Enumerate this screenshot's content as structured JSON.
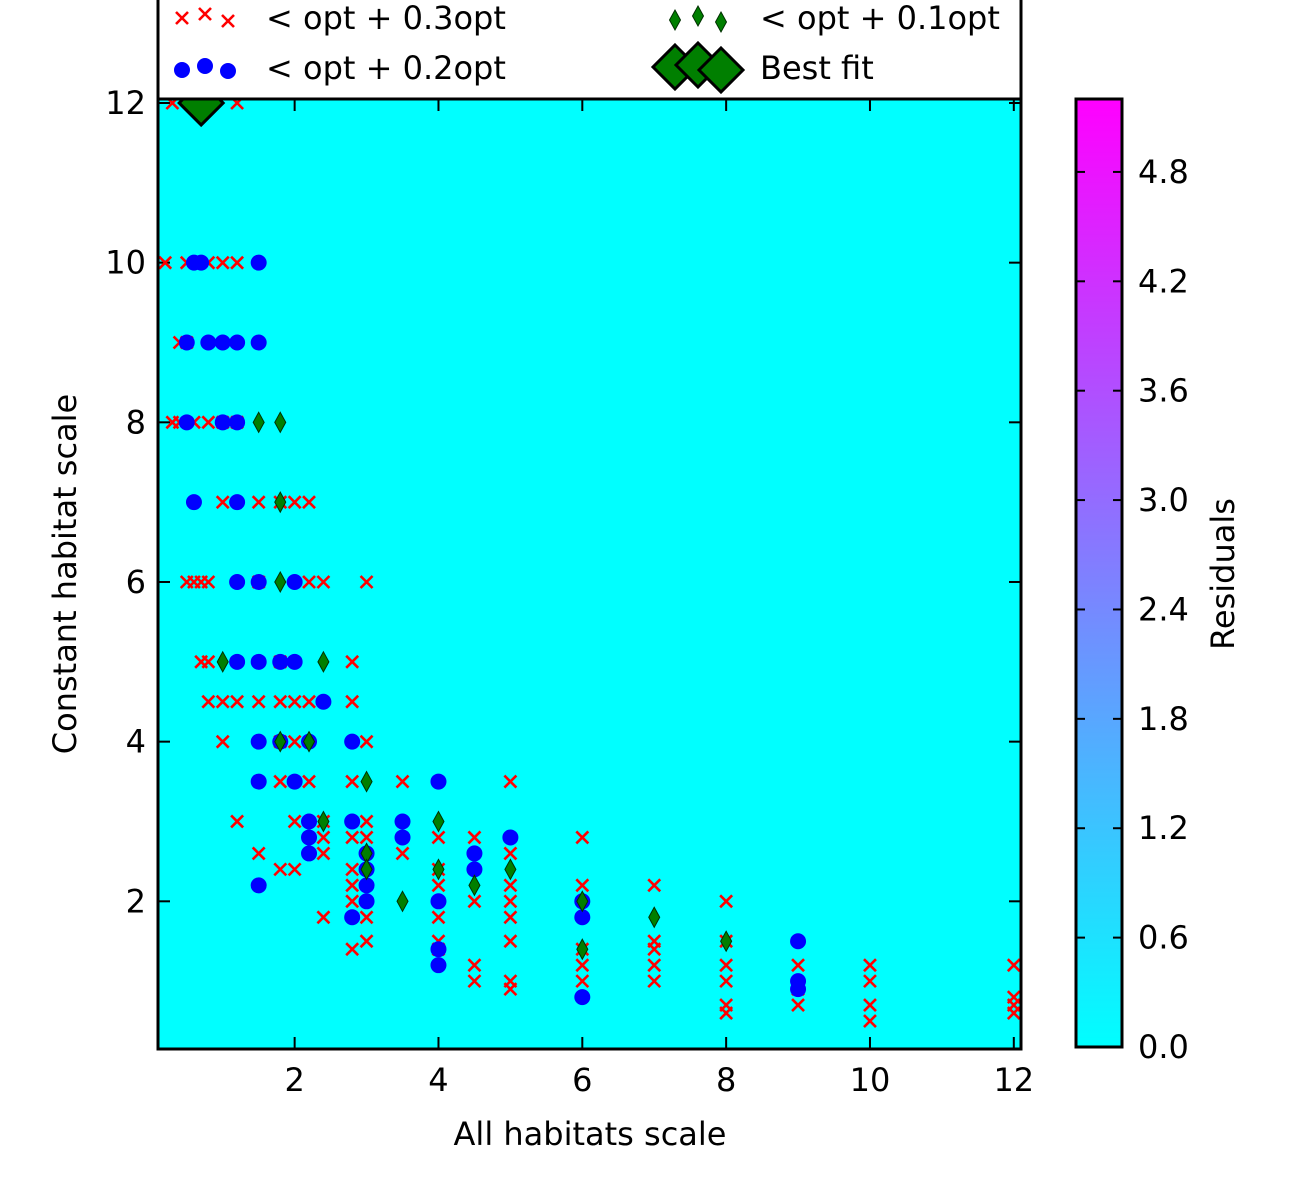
{
  "chart_data": {
    "type": "scatter",
    "xlabel": "All habitats scale",
    "ylabel": "Constant habitat scale",
    "xlim": [
      0.1,
      12.1
    ],
    "ylim": [
      0.15,
      12.05
    ],
    "xticks": [
      2,
      4,
      6,
      8,
      10,
      12
    ],
    "yticks": [
      2,
      4,
      6,
      8,
      10,
      12
    ],
    "background_color": "#00ffff",
    "grid": false,
    "colorbar": {
      "label": "Residuals",
      "min": 0.0,
      "max": 5.2,
      "ticks": [
        "0.0",
        "0.6",
        "1.2",
        "1.8",
        "2.4",
        "3.0",
        "3.6",
        "4.2",
        "4.8"
      ],
      "colormap": "cool"
    },
    "legend": {
      "placement": "top",
      "entries": [
        {
          "label": "< opt + 0.3opt",
          "marker": "x",
          "color": "#ff0000"
        },
        {
          "label": "< opt + 0.1opt",
          "marker": "thin-diamond",
          "color": "#007f00"
        },
        {
          "label": "< opt + 0.2opt",
          "marker": "circle",
          "color": "#0000ff"
        },
        {
          "label": "Best fit",
          "marker": "diamond",
          "color": "#007f00"
        }
      ]
    },
    "series": [
      {
        "name": "< opt + 0.3opt",
        "marker": "x",
        "color": "#ff0000",
        "points": [
          [
            0.3,
            12
          ],
          [
            0.7,
            12
          ],
          [
            1.2,
            12
          ],
          [
            0.2,
            10
          ],
          [
            0.5,
            10
          ],
          [
            0.8,
            10
          ],
          [
            1.0,
            10
          ],
          [
            1.2,
            10
          ],
          [
            0.4,
            9
          ],
          [
            0.5,
            9
          ],
          [
            0.3,
            8
          ],
          [
            0.4,
            8
          ],
          [
            0.6,
            8
          ],
          [
            0.8,
            8
          ],
          [
            1.0,
            8
          ],
          [
            1.2,
            8
          ],
          [
            1.0,
            7
          ],
          [
            1.5,
            7
          ],
          [
            1.8,
            7
          ],
          [
            2.0,
            7
          ],
          [
            2.2,
            7
          ],
          [
            0.5,
            6
          ],
          [
            0.6,
            6
          ],
          [
            0.7,
            6
          ],
          [
            0.8,
            6
          ],
          [
            1.5,
            6
          ],
          [
            2.2,
            6
          ],
          [
            2.4,
            6
          ],
          [
            3.0,
            6
          ],
          [
            0.7,
            5
          ],
          [
            0.8,
            5
          ],
          [
            1.8,
            5
          ],
          [
            2.8,
            5
          ],
          [
            0.8,
            4.5
          ],
          [
            1.0,
            4.5
          ],
          [
            1.2,
            4.5
          ],
          [
            1.5,
            4.5
          ],
          [
            1.8,
            4.5
          ],
          [
            2.0,
            4.5
          ],
          [
            2.2,
            4.5
          ],
          [
            2.8,
            4.5
          ],
          [
            1.0,
            4
          ],
          [
            1.8,
            4
          ],
          [
            2.0,
            4
          ],
          [
            3.0,
            4
          ],
          [
            1.8,
            3.5
          ],
          [
            2.2,
            3.5
          ],
          [
            2.8,
            3.5
          ],
          [
            3.5,
            3.5
          ],
          [
            5.0,
            3.5
          ],
          [
            1.2,
            3
          ],
          [
            2.0,
            3
          ],
          [
            2.4,
            3
          ],
          [
            3.0,
            3
          ],
          [
            2.4,
            2.8
          ],
          [
            2.8,
            2.8
          ],
          [
            3.0,
            2.8
          ],
          [
            4.0,
            2.8
          ],
          [
            4.5,
            2.8
          ],
          [
            6.0,
            2.8
          ],
          [
            1.5,
            2.6
          ],
          [
            2.4,
            2.6
          ],
          [
            3.5,
            2.6
          ],
          [
            5.0,
            2.6
          ],
          [
            1.8,
            2.4
          ],
          [
            2.0,
            2.4
          ],
          [
            2.8,
            2.4
          ],
          [
            4.0,
            2.4
          ],
          [
            2.8,
            2.2
          ],
          [
            4.0,
            2.2
          ],
          [
            5.0,
            2.2
          ],
          [
            6.0,
            2.2
          ],
          [
            7.0,
            2.2
          ],
          [
            2.8,
            2.0
          ],
          [
            4.5,
            2.0
          ],
          [
            5.0,
            2.0
          ],
          [
            8.0,
            2.0
          ],
          [
            2.4,
            1.8
          ],
          [
            3.0,
            1.8
          ],
          [
            4.0,
            1.8
          ],
          [
            5.0,
            1.8
          ],
          [
            3.0,
            1.5
          ],
          [
            4.0,
            1.5
          ],
          [
            5.0,
            1.5
          ],
          [
            7.0,
            1.5
          ],
          [
            8.0,
            1.5
          ],
          [
            2.8,
            1.4
          ],
          [
            4.0,
            1.4
          ],
          [
            6.0,
            1.4
          ],
          [
            7.0,
            1.4
          ],
          [
            4.5,
            1.2
          ],
          [
            6.0,
            1.2
          ],
          [
            7.0,
            1.2
          ],
          [
            8.0,
            1.2
          ],
          [
            9.0,
            1.2
          ],
          [
            10.0,
            1.2
          ],
          [
            12.0,
            1.2
          ],
          [
            4.5,
            1.0
          ],
          [
            5.0,
            1.0
          ],
          [
            6.0,
            1.0
          ],
          [
            7.0,
            1.0
          ],
          [
            8.0,
            1.0
          ],
          [
            10.0,
            1.0
          ],
          [
            5.0,
            0.9
          ],
          [
            9.0,
            0.9
          ],
          [
            12.0,
            0.8
          ],
          [
            8.0,
            0.7
          ],
          [
            9.0,
            0.7
          ],
          [
            10.0,
            0.7
          ],
          [
            12.0,
            0.7
          ],
          [
            8.0,
            0.6
          ],
          [
            12.0,
            0.6
          ],
          [
            10.0,
            0.5
          ]
        ]
      },
      {
        "name": "< opt + 0.2opt",
        "marker": "circle",
        "color": "#0000ff",
        "points": [
          [
            0.6,
            10
          ],
          [
            0.7,
            10
          ],
          [
            1.5,
            10
          ],
          [
            0.5,
            9
          ],
          [
            0.8,
            9
          ],
          [
            1.0,
            9
          ],
          [
            1.2,
            9
          ],
          [
            1.5,
            9
          ],
          [
            0.5,
            8
          ],
          [
            1.0,
            8
          ],
          [
            1.2,
            8
          ],
          [
            0.6,
            7
          ],
          [
            1.2,
            7
          ],
          [
            1.2,
            6
          ],
          [
            1.5,
            6
          ],
          [
            2.0,
            6
          ],
          [
            1.2,
            5
          ],
          [
            1.5,
            5
          ],
          [
            1.8,
            5
          ],
          [
            2.0,
            5
          ],
          [
            2.4,
            4.5
          ],
          [
            1.5,
            4
          ],
          [
            1.8,
            4
          ],
          [
            2.2,
            4
          ],
          [
            2.8,
            4
          ],
          [
            1.5,
            3.5
          ],
          [
            2.0,
            3.5
          ],
          [
            4.0,
            3.5
          ],
          [
            2.2,
            3
          ],
          [
            2.8,
            3
          ],
          [
            3.5,
            3
          ],
          [
            2.2,
            2.8
          ],
          [
            3.5,
            2.8
          ],
          [
            5.0,
            2.8
          ],
          [
            2.2,
            2.6
          ],
          [
            3.0,
            2.6
          ],
          [
            4.5,
            2.6
          ],
          [
            3.0,
            2.4
          ],
          [
            4.5,
            2.4
          ],
          [
            1.5,
            2.2
          ],
          [
            3.0,
            2.2
          ],
          [
            3.0,
            2.0
          ],
          [
            4.0,
            2.0
          ],
          [
            6.0,
            2.0
          ],
          [
            2.8,
            1.8
          ],
          [
            6.0,
            1.8
          ],
          [
            9.0,
            1.5
          ],
          [
            4.0,
            1.4
          ],
          [
            4.0,
            1.2
          ],
          [
            9.0,
            1.0
          ],
          [
            9.0,
            0.9
          ],
          [
            6.0,
            0.8
          ]
        ]
      },
      {
        "name": "< opt + 0.1opt",
        "marker": "thin-diamond",
        "color": "#007f00",
        "points": [
          [
            1.5,
            8
          ],
          [
            1.8,
            8
          ],
          [
            1.8,
            7
          ],
          [
            1.8,
            6
          ],
          [
            1.0,
            5
          ],
          [
            2.4,
            5
          ],
          [
            1.8,
            4
          ],
          [
            2.2,
            4
          ],
          [
            3.0,
            3.5
          ],
          [
            2.4,
            3
          ],
          [
            4.0,
            3
          ],
          [
            3.0,
            2.6
          ],
          [
            3.0,
            2.4
          ],
          [
            4.0,
            2.4
          ],
          [
            5.0,
            2.4
          ],
          [
            4.5,
            2.2
          ],
          [
            3.5,
            2.0
          ],
          [
            6.0,
            2.0
          ],
          [
            7.0,
            1.8
          ],
          [
            8.0,
            1.5
          ],
          [
            6.0,
            1.4
          ]
        ]
      },
      {
        "name": "Best fit",
        "marker": "diamond",
        "color": "#007f00",
        "points": [
          [
            0.7,
            12
          ]
        ]
      }
    ]
  }
}
